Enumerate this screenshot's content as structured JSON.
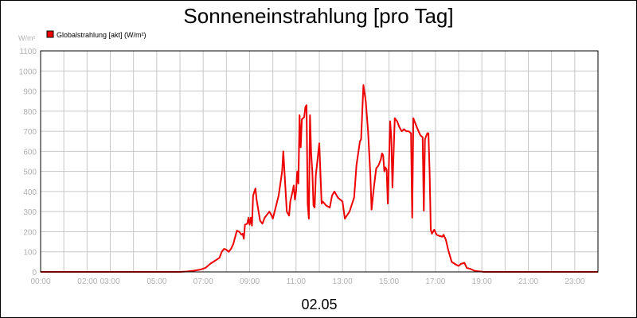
{
  "chart_data": {
    "type": "line",
    "title": "Sonneneinstrahlung [pro Tag]",
    "ylabel": "W/m²",
    "xlabel": "02.05",
    "ylim": [
      0,
      1100
    ],
    "y_ticks": [
      0,
      100,
      200,
      300,
      400,
      500,
      600,
      700,
      800,
      900,
      1000,
      1100
    ],
    "x_range_hours": [
      0,
      24
    ],
    "x_ticks": [
      {
        "label": "00:00",
        "hour": 0
      },
      {
        "label": "02:00",
        "hour": 2
      },
      {
        "label": "03:00",
        "hour": 3
      },
      {
        "label": "05:00",
        "hour": 5
      },
      {
        "label": "07:00",
        "hour": 7
      },
      {
        "label": "09:00",
        "hour": 9
      },
      {
        "label": "11:00",
        "hour": 11
      },
      {
        "label": "13:00",
        "hour": 13
      },
      {
        "label": "15:00",
        "hour": 15
      },
      {
        "label": "17:00",
        "hour": 17
      },
      {
        "label": "19:00",
        "hour": 19
      },
      {
        "label": "21:00",
        "hour": 21
      },
      {
        "label": "23:00",
        "hour": 23
      }
    ],
    "grid": true,
    "legend_position": "top-left",
    "series": [
      {
        "name": "Globalstrahlung [akt] (W/m²)",
        "color": "#ee0000",
        "points": [
          [
            0,
            0
          ],
          [
            6.0,
            0
          ],
          [
            6.3,
            2
          ],
          [
            6.6,
            6
          ],
          [
            6.9,
            12
          ],
          [
            7.1,
            20
          ],
          [
            7.3,
            40
          ],
          [
            7.5,
            55
          ],
          [
            7.7,
            70
          ],
          [
            7.8,
            100
          ],
          [
            7.9,
            115
          ],
          [
            8.0,
            110
          ],
          [
            8.1,
            100
          ],
          [
            8.2,
            115
          ],
          [
            8.3,
            140
          ],
          [
            8.45,
            205
          ],
          [
            8.55,
            200
          ],
          [
            8.65,
            185
          ],
          [
            8.7,
            190
          ],
          [
            8.75,
            165
          ],
          [
            8.8,
            235
          ],
          [
            8.9,
            240
          ],
          [
            8.95,
            270
          ],
          [
            9.0,
            235
          ],
          [
            9.05,
            270
          ],
          [
            9.1,
            230
          ],
          [
            9.15,
            380
          ],
          [
            9.25,
            415
          ],
          [
            9.3,
            360
          ],
          [
            9.45,
            255
          ],
          [
            9.55,
            240
          ],
          [
            9.65,
            270
          ],
          [
            9.85,
            300
          ],
          [
            9.95,
            280
          ],
          [
            10.0,
            265
          ],
          [
            10.25,
            380
          ],
          [
            10.4,
            500
          ],
          [
            10.45,
            600
          ],
          [
            10.5,
            500
          ],
          [
            10.6,
            300
          ],
          [
            10.7,
            280
          ],
          [
            10.75,
            350
          ],
          [
            10.85,
            400
          ],
          [
            10.9,
            430
          ],
          [
            10.95,
            360
          ],
          [
            11.0,
            400
          ],
          [
            11.05,
            500
          ],
          [
            11.1,
            440
          ],
          [
            11.15,
            780
          ],
          [
            11.2,
            620
          ],
          [
            11.25,
            760
          ],
          [
            11.35,
            770
          ],
          [
            11.4,
            820
          ],
          [
            11.45,
            830
          ],
          [
            11.5,
            340
          ],
          [
            11.55,
            265
          ],
          [
            11.6,
            780
          ],
          [
            11.65,
            590
          ],
          [
            11.7,
            500
          ],
          [
            11.75,
            330
          ],
          [
            11.8,
            320
          ],
          [
            11.85,
            480
          ],
          [
            12.0,
            640
          ],
          [
            12.1,
            340
          ],
          [
            12.15,
            350
          ],
          [
            12.3,
            330
          ],
          [
            12.45,
            320
          ],
          [
            12.55,
            380
          ],
          [
            12.65,
            400
          ],
          [
            12.8,
            370
          ],
          [
            13.0,
            350
          ],
          [
            13.1,
            265
          ],
          [
            13.3,
            300
          ],
          [
            13.5,
            370
          ],
          [
            13.6,
            530
          ],
          [
            13.75,
            650
          ],
          [
            13.8,
            660
          ],
          [
            13.9,
            930
          ],
          [
            14.0,
            850
          ],
          [
            14.1,
            700
          ],
          [
            14.2,
            480
          ],
          [
            14.25,
            310
          ],
          [
            14.35,
            420
          ],
          [
            14.45,
            515
          ],
          [
            14.55,
            530
          ],
          [
            14.65,
            560
          ],
          [
            14.7,
            590
          ],
          [
            14.75,
            580
          ],
          [
            14.8,
            500
          ],
          [
            14.85,
            520
          ],
          [
            14.9,
            510
          ],
          [
            14.95,
            340
          ],
          [
            15.05,
            750
          ],
          [
            15.1,
            670
          ],
          [
            15.15,
            420
          ],
          [
            15.25,
            765
          ],
          [
            15.35,
            750
          ],
          [
            15.45,
            720
          ],
          [
            15.55,
            700
          ],
          [
            15.65,
            710
          ],
          [
            15.75,
            700
          ],
          [
            15.85,
            700
          ],
          [
            15.95,
            690
          ],
          [
            16.0,
            270
          ],
          [
            16.05,
            765
          ],
          [
            16.2,
            720
          ],
          [
            16.35,
            680
          ],
          [
            16.45,
            670
          ],
          [
            16.5,
            305
          ],
          [
            16.55,
            660
          ],
          [
            16.65,
            690
          ],
          [
            16.7,
            690
          ],
          [
            16.75,
            500
          ],
          [
            16.8,
            210
          ],
          [
            16.85,
            190
          ],
          [
            16.95,
            210
          ],
          [
            17.05,
            185
          ],
          [
            17.15,
            180
          ],
          [
            17.3,
            175
          ],
          [
            17.35,
            185
          ],
          [
            17.45,
            160
          ],
          [
            17.55,
            110
          ],
          [
            17.7,
            50
          ],
          [
            17.9,
            35
          ],
          [
            18.0,
            30
          ],
          [
            18.1,
            40
          ],
          [
            18.25,
            45
          ],
          [
            18.35,
            20
          ],
          [
            18.5,
            15
          ],
          [
            18.7,
            5
          ],
          [
            18.85,
            3
          ],
          [
            19.1,
            0
          ],
          [
            24,
            0
          ]
        ]
      }
    ]
  }
}
